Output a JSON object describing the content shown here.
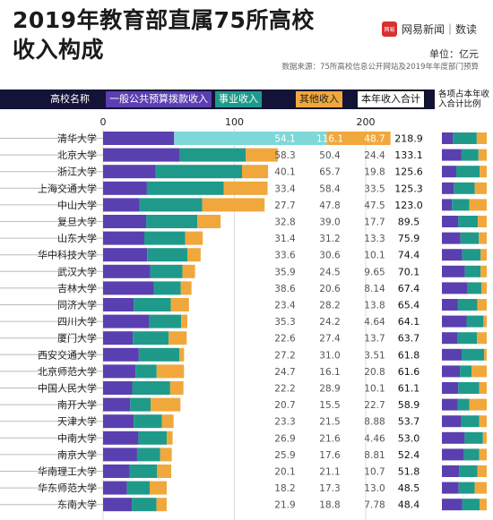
{
  "header": {
    "title_line1": "2019年教育部直属75所高校",
    "title_line2": "收入构成",
    "brand_name": "网易新闻｜数读",
    "brand_logo_text": "网易",
    "unit": "单位：亿元",
    "source": "数据来源：75所高校信息公开网站及2019年年度部门预算"
  },
  "columns": {
    "name": "高校名称",
    "gov": "一般公共预算拨款收入",
    "biz": "事业收入",
    "other": "其他收入",
    "total": "本年收入合计",
    "share": "各项占本年收入合计比例"
  },
  "chart_data": {
    "type": "bar",
    "stacked": true,
    "orientation": "horizontal",
    "title": "2019年教育部直属75所高校收入构成",
    "unit": "亿元",
    "xlim": [
      0,
      200
    ],
    "xticks": [
      0,
      100,
      200
    ],
    "colors": {
      "gov": "#5a3fb0",
      "biz": "#1f9a8a",
      "other": "#f0a83c",
      "highlight": "#7fd8d8"
    },
    "categories": [
      "清华大学",
      "北京大学",
      "浙江大学",
      "上海交通大学",
      "中山大学",
      "复旦大学",
      "山东大学",
      "华中科技大学",
      "武汉大学",
      "吉林大学",
      "同济大学",
      "四川大学",
      "厦门大学",
      "西安交通大学",
      "北京师范大学",
      "中国人民大学",
      "南开大学",
      "天津大学",
      "中南大学",
      "南京大学",
      "华南理工大学",
      "华东师范大学",
      "东南大学"
    ],
    "series": [
      {
        "name": "一般公共预算拨款收入",
        "values": [
          54.1,
          58.3,
          40.1,
          33.4,
          27.7,
          32.8,
          31.4,
          33.6,
          35.9,
          38.6,
          23.4,
          35.3,
          22.6,
          27.2,
          24.7,
          22.2,
          20.7,
          23.3,
          26.9,
          25.9,
          20.1,
          18.2,
          21.9
        ]
      },
      {
        "name": "事业收入",
        "values": [
          116.1,
          50.4,
          65.7,
          58.4,
          47.8,
          39.0,
          31.2,
          30.6,
          24.5,
          20.6,
          28.2,
          24.2,
          27.4,
          31.0,
          16.1,
          28.9,
          15.5,
          21.5,
          21.6,
          17.6,
          21.1,
          17.3,
          18.8
        ]
      },
      {
        "name": "其他收入",
        "values": [
          48.7,
          24.4,
          19.8,
          33.5,
          47.5,
          17.7,
          13.3,
          10.1,
          9.65,
          8.14,
          13.8,
          4.64,
          13.7,
          3.51,
          20.8,
          10.1,
          22.7,
          8.88,
          4.46,
          8.81,
          10.7,
          13.0,
          7.78
        ]
      }
    ],
    "value_labels": {
      "gov": [
        "54.1",
        "58.3",
        "40.1",
        "33.4",
        "27.7",
        "32.8",
        "31.4",
        "33.6",
        "35.9",
        "38.6",
        "23.4",
        "35.3",
        "22.6",
        "27.2",
        "24.7",
        "22.2",
        "20.7",
        "23.3",
        "26.9",
        "25.9",
        "20.1",
        "18.2",
        "21.9"
      ],
      "biz": [
        "116.1",
        "50.4",
        "65.7",
        "58.4",
        "47.8",
        "39.0",
        "31.2",
        "30.6",
        "24.5",
        "20.6",
        "28.2",
        "24.2",
        "27.4",
        "31.0",
        "16.1",
        "28.9",
        "15.5",
        "21.5",
        "21.6",
        "17.6",
        "21.1",
        "17.3",
        "18.8"
      ],
      "other": [
        "48.7",
        "24.4",
        "19.8",
        "33.5",
        "47.5",
        "17.7",
        "13.3",
        "10.1",
        "9.65",
        "8.14",
        "13.8",
        "4.64",
        "13.7",
        "3.51",
        "20.8",
        "10.1",
        "22.7",
        "8.88",
        "4.46",
        "8.81",
        "10.7",
        "13.0",
        "7.78"
      ]
    },
    "totals": [
      "218.9",
      "133.1",
      "125.6",
      "125.3",
      "123.0",
      "89.5",
      "75.9",
      "74.4",
      "70.1",
      "67.4",
      "65.4",
      "64.1",
      "63.7",
      "61.8",
      "61.6",
      "61.1",
      "58.9",
      "53.7",
      "53.0",
      "52.4",
      "51.8",
      "48.5",
      "48.4"
    ]
  }
}
